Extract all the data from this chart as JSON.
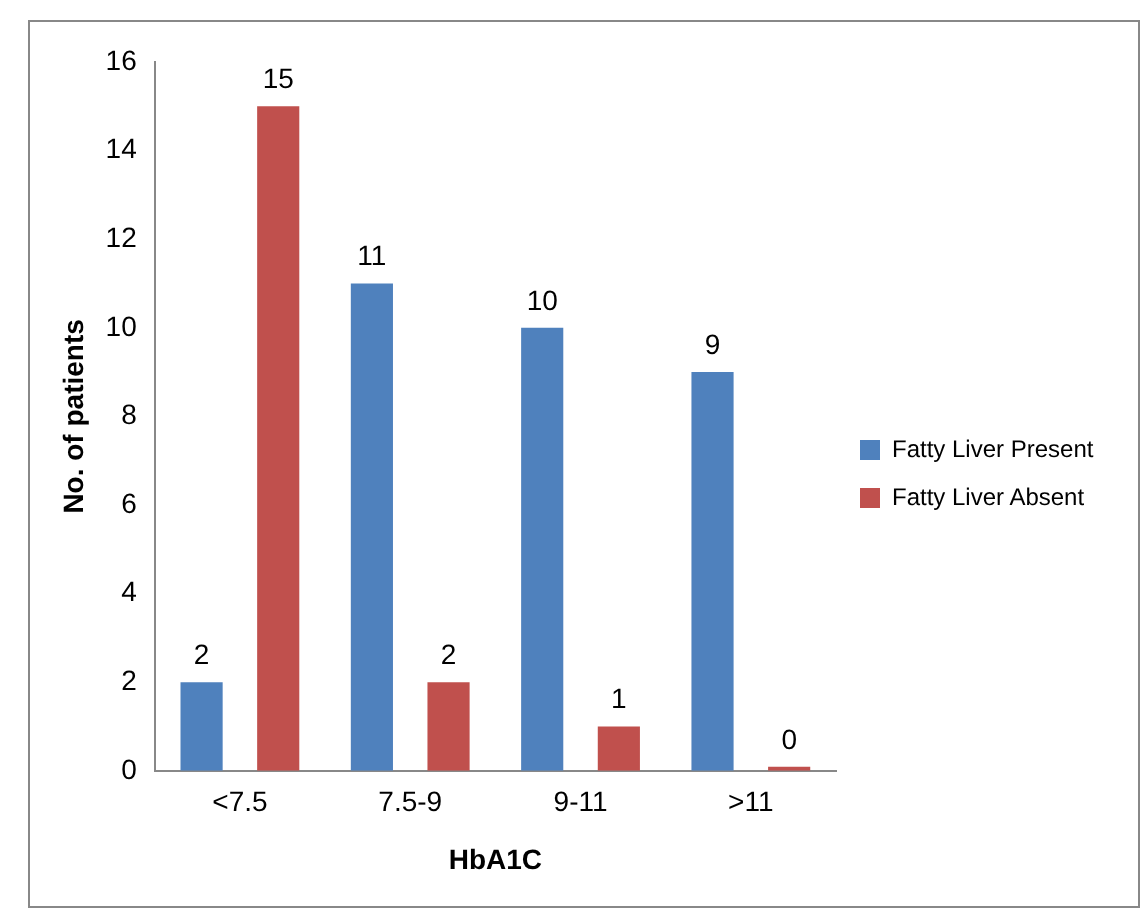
{
  "chart_data": {
    "type": "bar",
    "xlabel": "HbA1C",
    "ylabel": "No. of patients",
    "categories": [
      "<7.5",
      "7.5-9",
      "9-11",
      ">11"
    ],
    "series": [
      {
        "name": "Fatty Liver Present",
        "color": "#4f81bd",
        "values": [
          2,
          11,
          10,
          9
        ]
      },
      {
        "name": "Fatty Liver Absent",
        "color": "#c0504d",
        "values": [
          15,
          2,
          1,
          0
        ]
      }
    ],
    "ylim": [
      0,
      16
    ],
    "yticks": [
      0,
      2,
      4,
      6,
      8,
      10,
      12,
      14,
      16
    ],
    "grid": false,
    "legend": "right",
    "data_labels": true
  }
}
